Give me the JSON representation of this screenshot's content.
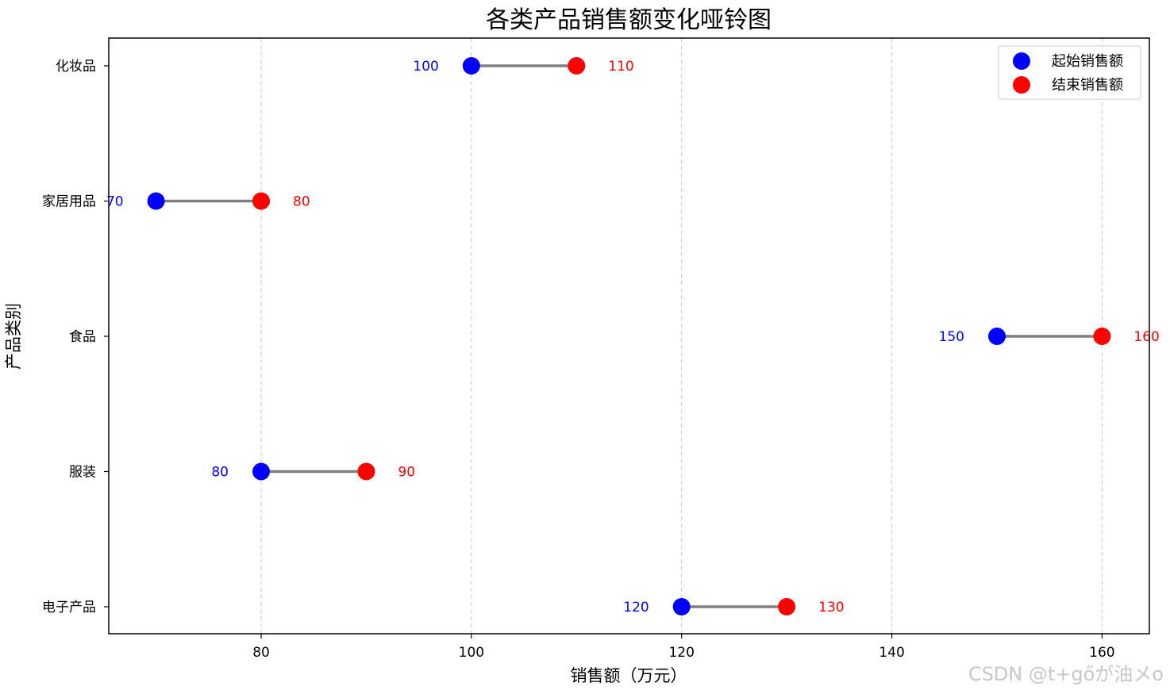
{
  "chart_data": {
    "type": "dumbbell",
    "title": "各类产品销售额变化哑铃图",
    "xlabel": "销售额（万元）",
    "ylabel": "产品类别",
    "xlim": [
      65.5,
      164.5
    ],
    "xticks": [
      80,
      100,
      120,
      140,
      160
    ],
    "grid": "x-dashed",
    "legend_position": "top-right",
    "categories": [
      "电子产品",
      "服装",
      "食品",
      "家居用品",
      "化妆品"
    ],
    "series": [
      {
        "name": "起始销售额",
        "color": "#0000ff",
        "values": [
          120,
          80,
          150,
          70,
          100
        ]
      },
      {
        "name": "结束销售额",
        "color": "#ff0000",
        "values": [
          130,
          90,
          160,
          80,
          110
        ]
      }
    ],
    "connector_color": "#808080"
  },
  "watermark": "CSDN @t+gőが油メo"
}
